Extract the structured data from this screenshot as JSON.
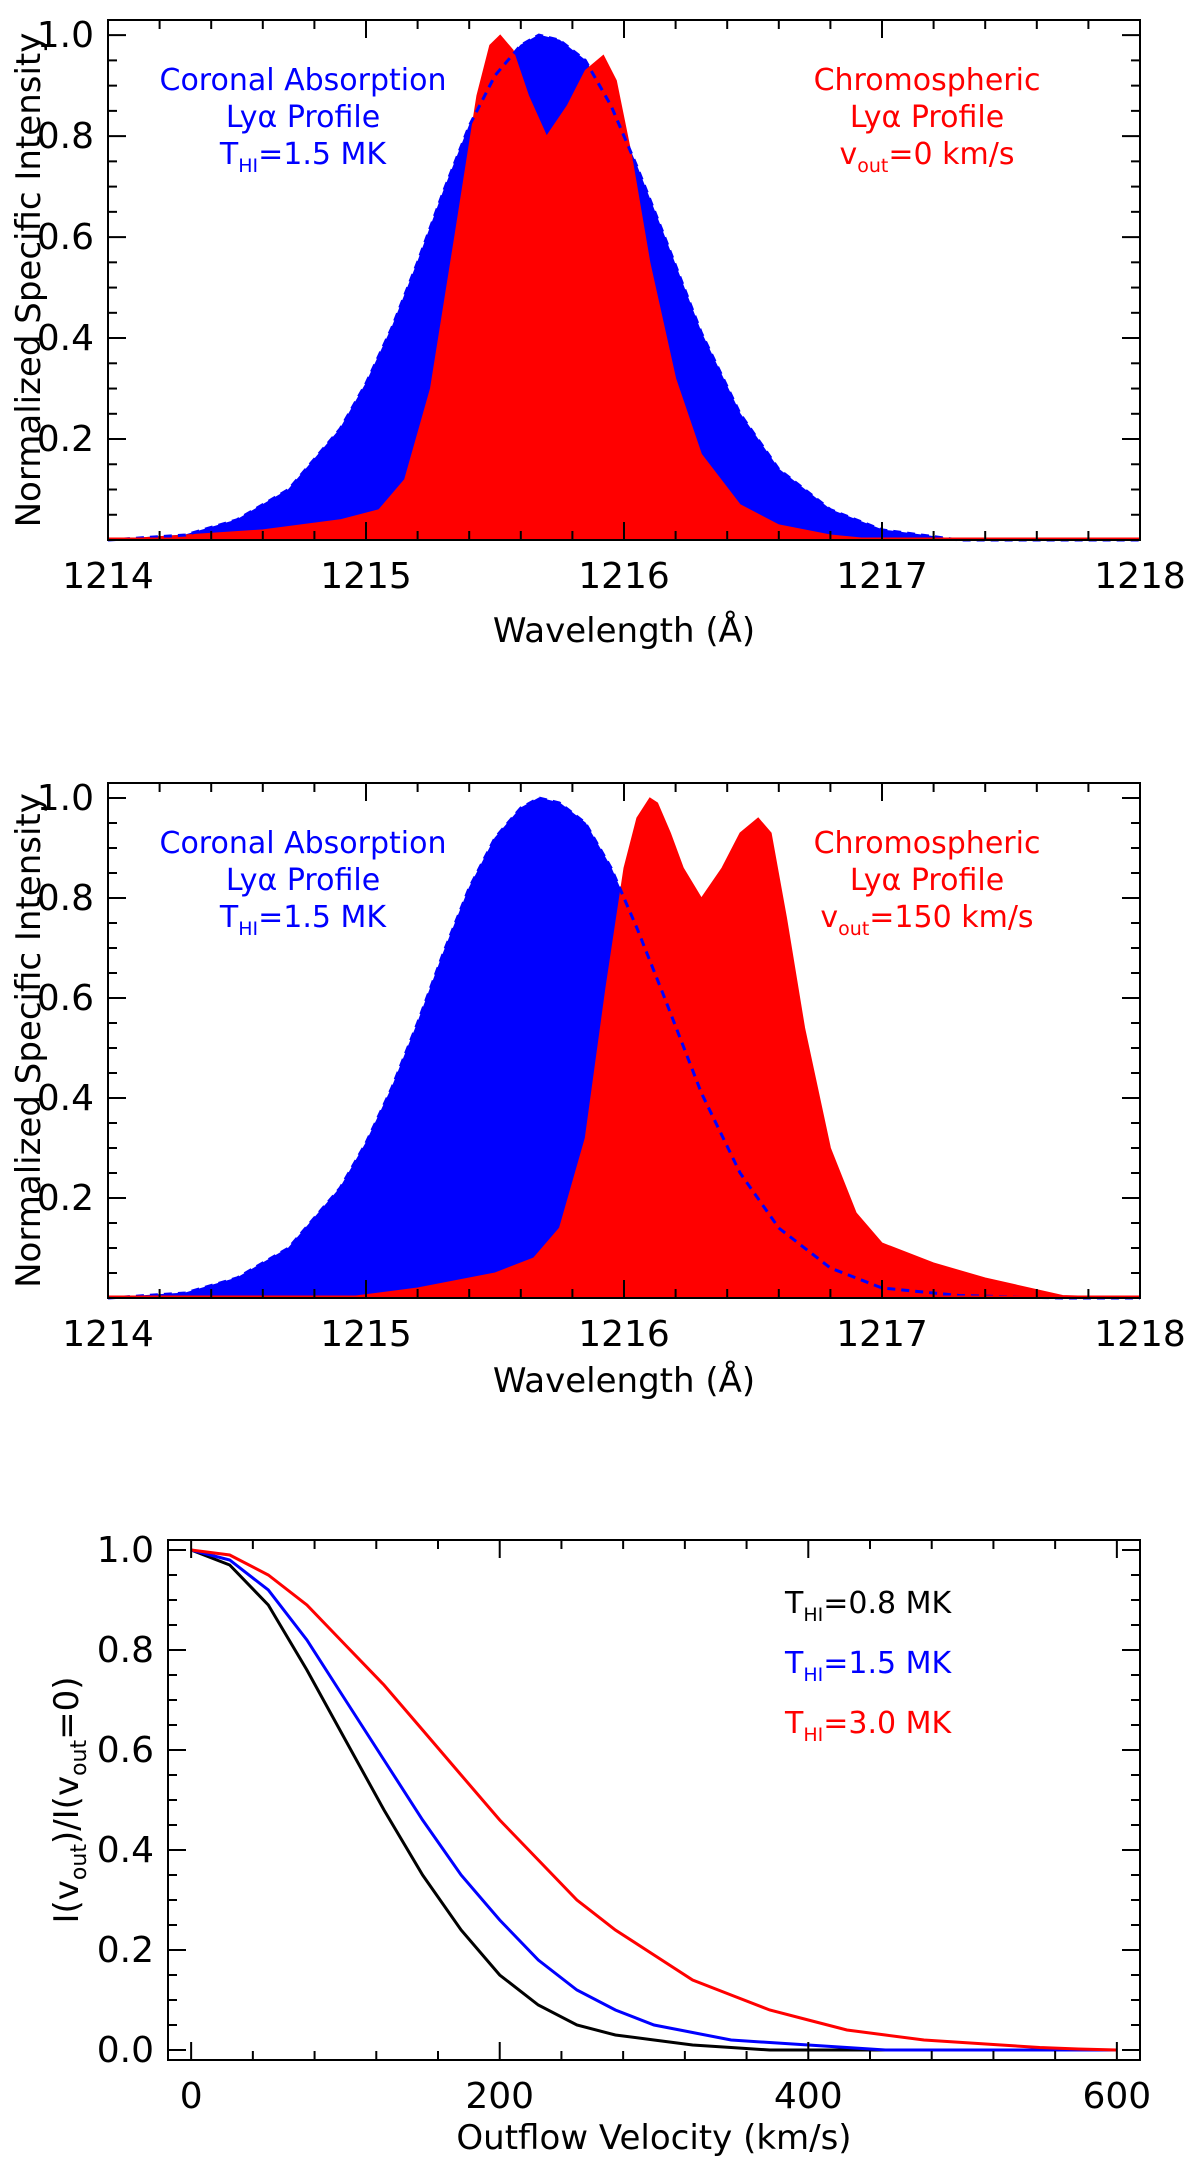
{
  "chart_data": [
    {
      "type": "area",
      "xlabel": "Wavelength (Å)",
      "ylabel": "Normalized Specific Intensity",
      "xlim": [
        1214,
        1218
      ],
      "ylim": [
        0,
        1.03
      ],
      "xticks": [
        {
          "value": 1214,
          "label": "1214"
        },
        {
          "value": 1215,
          "label": "1215"
        },
        {
          "value": 1216,
          "label": "1216"
        },
        {
          "value": 1217,
          "label": "1217"
        },
        {
          "value": 1218,
          "label": "1218"
        }
      ],
      "yticks": [
        {
          "value": 0.2,
          "label": "0.2"
        },
        {
          "value": 0.4,
          "label": "0.4"
        },
        {
          "value": 0.6,
          "label": "0.6"
        },
        {
          "value": 0.8,
          "label": "0.8"
        },
        {
          "value": 1.0,
          "label": "1.0"
        }
      ],
      "outflow_velocity_kms": 0,
      "series": [
        {
          "name": "Coronal Absorption Lyα Profile",
          "color": "#0000ff",
          "style": "filled with dashed outline",
          "x": [
            1214.0,
            1214.3,
            1214.5,
            1214.7,
            1214.9,
            1215.0,
            1215.1,
            1215.2,
            1215.3,
            1215.4,
            1215.5,
            1215.6,
            1215.67,
            1215.75,
            1215.85,
            1215.95,
            1216.05,
            1216.15,
            1216.3,
            1216.45,
            1216.6,
            1216.8,
            1217.0,
            1217.3,
            1218.0
          ],
          "values": [
            0.0,
            0.01,
            0.04,
            0.1,
            0.22,
            0.31,
            0.42,
            0.55,
            0.69,
            0.82,
            0.92,
            0.98,
            1.0,
            0.99,
            0.95,
            0.86,
            0.74,
            0.61,
            0.41,
            0.25,
            0.14,
            0.06,
            0.02,
            0.0,
            0.0
          ]
        },
        {
          "name": "Chromospheric Lyα Profile",
          "color": "#ff0000",
          "style": "filled",
          "x": [
            1214.0,
            1214.3,
            1214.6,
            1214.9,
            1215.05,
            1215.15,
            1215.25,
            1215.35,
            1215.43,
            1215.48,
            1215.52,
            1215.57,
            1215.63,
            1215.7,
            1215.78,
            1215.85,
            1215.92,
            1215.97,
            1216.03,
            1216.1,
            1216.2,
            1216.3,
            1216.45,
            1216.6,
            1216.8,
            1217.0,
            1217.3,
            1218.0
          ],
          "values": [
            0.0,
            0.01,
            0.02,
            0.04,
            0.06,
            0.12,
            0.3,
            0.62,
            0.88,
            0.98,
            1.0,
            0.97,
            0.88,
            0.8,
            0.86,
            0.93,
            0.96,
            0.91,
            0.76,
            0.55,
            0.32,
            0.17,
            0.07,
            0.03,
            0.01,
            0.0,
            0.0,
            0.0
          ]
        }
      ],
      "annotations": [
        {
          "id": "coronal",
          "color": "#0000ff",
          "line1": "Coronal Absorption",
          "line2": "Lyα Profile",
          "var_main": "T",
          "var_sub": "HI",
          "value_text": "=1.5 MK"
        },
        {
          "id": "chromo",
          "color": "#ff0000",
          "line1": "Chromospheric",
          "line2": "Lyα Profile",
          "var_main": "v",
          "var_sub": "out",
          "value_text": "=0 km/s"
        }
      ]
    },
    {
      "type": "area",
      "xlabel": "Wavelength (Å)",
      "ylabel": "Normalized Specific Intensity",
      "xlim": [
        1214,
        1218
      ],
      "ylim": [
        0,
        1.03
      ],
      "xticks": [
        {
          "value": 1214,
          "label": "1214"
        },
        {
          "value": 1215,
          "label": "1215"
        },
        {
          "value": 1216,
          "label": "1216"
        },
        {
          "value": 1217,
          "label": "1217"
        },
        {
          "value": 1218,
          "label": "1218"
        }
      ],
      "yticks": [
        {
          "value": 0.2,
          "label": "0.2"
        },
        {
          "value": 0.4,
          "label": "0.4"
        },
        {
          "value": 0.6,
          "label": "0.6"
        },
        {
          "value": 0.8,
          "label": "0.8"
        },
        {
          "value": 1.0,
          "label": "1.0"
        }
      ],
      "outflow_velocity_kms": 150,
      "series": [
        {
          "name": "Coronal Absorption Lyα Profile",
          "color": "#0000ff",
          "style": "filled with dashed outline",
          "x": [
            1214.0,
            1214.3,
            1214.5,
            1214.7,
            1214.9,
            1215.0,
            1215.1,
            1215.2,
            1215.3,
            1215.4,
            1215.5,
            1215.6,
            1215.67,
            1215.75,
            1215.85,
            1215.95,
            1216.05,
            1216.15,
            1216.3,
            1216.45,
            1216.6,
            1216.8,
            1217.0,
            1217.3,
            1217.7,
            1218.0
          ],
          "values": [
            0.0,
            0.01,
            0.04,
            0.1,
            0.22,
            0.31,
            0.42,
            0.55,
            0.69,
            0.82,
            0.92,
            0.98,
            1.0,
            0.99,
            0.95,
            0.86,
            0.74,
            0.61,
            0.41,
            0.25,
            0.14,
            0.06,
            0.02,
            0.005,
            0.0,
            0.0
          ]
        },
        {
          "name": "Chromospheric Lyα Profile",
          "color": "#ff0000",
          "style": "filled",
          "x": [
            1214.0,
            1214.9,
            1215.2,
            1215.5,
            1215.65,
            1215.75,
            1215.85,
            1215.93,
            1216.0,
            1216.05,
            1216.1,
            1216.13,
            1216.18,
            1216.23,
            1216.3,
            1216.38,
            1216.45,
            1216.52,
            1216.57,
            1216.63,
            1216.7,
            1216.8,
            1216.9,
            1217.0,
            1217.2,
            1217.4,
            1217.7,
            1218.0
          ],
          "values": [
            0.0,
            0.0,
            0.02,
            0.05,
            0.08,
            0.14,
            0.32,
            0.62,
            0.86,
            0.96,
            1.0,
            0.99,
            0.93,
            0.86,
            0.8,
            0.86,
            0.93,
            0.96,
            0.93,
            0.76,
            0.54,
            0.3,
            0.17,
            0.11,
            0.07,
            0.04,
            0.005,
            0.0
          ]
        }
      ],
      "annotations": [
        {
          "id": "coronal",
          "color": "#0000ff",
          "line1": "Coronal Absorption",
          "line2": "Lyα Profile",
          "var_main": "T",
          "var_sub": "HI",
          "value_text": "=1.5 MK"
        },
        {
          "id": "chromo",
          "color": "#ff0000",
          "line1": "Chromospheric",
          "line2": "Lyα Profile",
          "var_main": "v",
          "var_sub": "out",
          "value_text": "=150 km/s"
        }
      ]
    },
    {
      "type": "line",
      "xlabel": "Outflow Velocity (km/s)",
      "ylabel": {
        "I1": "I(v",
        "sub1": "out",
        "mid": ")/I(v",
        "sub2": "out",
        "end": "=0)"
      },
      "xlim": [
        -15,
        615
      ],
      "ylim": [
        -0.02,
        1.02
      ],
      "xticks": [
        {
          "value": 0,
          "label": "0"
        },
        {
          "value": 200,
          "label": "200"
        },
        {
          "value": 400,
          "label": "400"
        },
        {
          "value": 600,
          "label": "600"
        }
      ],
      "yticks": [
        {
          "value": 0.0,
          "label": "0.0"
        },
        {
          "value": 0.2,
          "label": "0.2"
        },
        {
          "value": 0.4,
          "label": "0.4"
        },
        {
          "value": 0.6,
          "label": "0.6"
        },
        {
          "value": 0.8,
          "label": "0.8"
        },
        {
          "value": 1.0,
          "label": "1.0"
        }
      ],
      "x": [
        0,
        25,
        50,
        75,
        100,
        125,
        150,
        175,
        200,
        225,
        250,
        275,
        300,
        325,
        350,
        375,
        400,
        425,
        450,
        475,
        500,
        525,
        550,
        575,
        600
      ],
      "series": [
        {
          "name": "T_HI=0.8 MK",
          "var_main": "T",
          "var_sub": "HI",
          "value_text": "=0.8 MK",
          "color": "#000000",
          "values": [
            1.0,
            0.97,
            0.89,
            0.76,
            0.62,
            0.48,
            0.35,
            0.24,
            0.15,
            0.09,
            0.05,
            0.03,
            0.02,
            0.01,
            0.005,
            0.0,
            0.0,
            0.0,
            0.0,
            0.0,
            0.0,
            0.0,
            0.0,
            0.0,
            0.0
          ]
        },
        {
          "name": "T_HI=1.5 MK",
          "var_main": "T",
          "var_sub": "HI",
          "value_text": "=1.5 MK",
          "color": "#0000ff",
          "values": [
            1.0,
            0.98,
            0.92,
            0.82,
            0.7,
            0.58,
            0.46,
            0.35,
            0.26,
            0.18,
            0.12,
            0.08,
            0.05,
            0.035,
            0.02,
            0.015,
            0.01,
            0.005,
            0.0,
            0.0,
            0.0,
            0.0,
            0.0,
            0.0,
            0.0
          ]
        },
        {
          "name": "T_HI=3.0 MK",
          "var_main": "T",
          "var_sub": "HI",
          "value_text": "=3.0 MK",
          "color": "#ff0000",
          "values": [
            1.0,
            0.99,
            0.95,
            0.89,
            0.81,
            0.73,
            0.64,
            0.55,
            0.46,
            0.38,
            0.3,
            0.24,
            0.19,
            0.14,
            0.11,
            0.08,
            0.06,
            0.04,
            0.03,
            0.02,
            0.015,
            0.01,
            0.005,
            0.002,
            0.0
          ]
        }
      ]
    }
  ]
}
